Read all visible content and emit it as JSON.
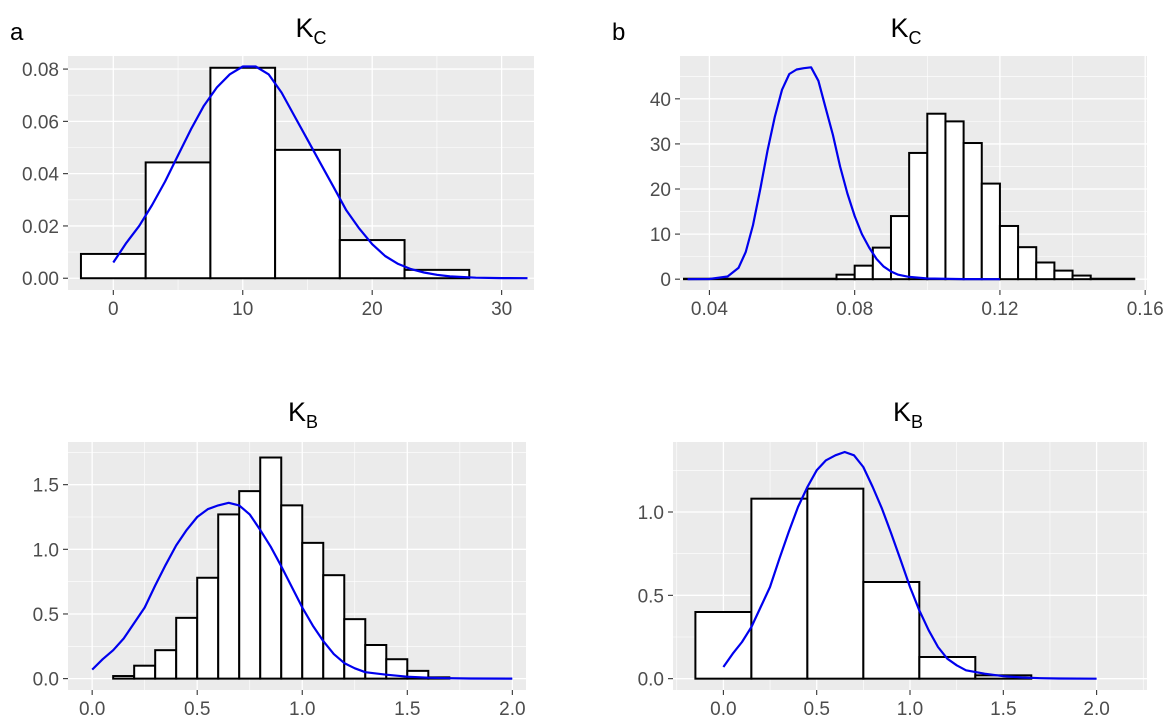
{
  "colors": {
    "panel_background": "#EBEBEB",
    "grid": "#FFFFFF",
    "bar_fill": "#FFFFFF",
    "bar_stroke": "#000000",
    "density_line": "#0000EE"
  },
  "chart_data": [
    {
      "id": "top-left",
      "panel_label": "a",
      "title": "K",
      "title_sub": "C",
      "type": "bar",
      "subtype": "histogram with density overlay",
      "grid": true,
      "xlim": [
        -3.5,
        32.5
      ],
      "ylim": [
        -0.0045,
        0.085
      ],
      "x_ticks": [
        0,
        10,
        20,
        30
      ],
      "x_tick_labels": [
        "0",
        "10",
        "20",
        "30"
      ],
      "y_ticks": [
        0,
        0.02,
        0.04,
        0.06,
        0.08
      ],
      "y_tick_labels": [
        "0.00",
        "0.02",
        "0.04",
        "0.06",
        "0.08"
      ],
      "bins": [
        {
          "x0": -2.5,
          "x1": 2.5,
          "value": 0.0093
        },
        {
          "x0": 2.5,
          "x1": 7.5,
          "value": 0.0443
        },
        {
          "x0": 7.5,
          "x1": 12.5,
          "value": 0.0805
        },
        {
          "x0": 12.5,
          "x1": 17.5,
          "value": 0.0491
        },
        {
          "x0": 17.5,
          "x1": 22.5,
          "value": 0.0146
        },
        {
          "x0": 22.5,
          "x1": 27.5,
          "value": 0.0032
        }
      ],
      "density": [
        [
          0,
          0.006
        ],
        [
          1,
          0.0135
        ],
        [
          2,
          0.02
        ],
        [
          3,
          0.028
        ],
        [
          4,
          0.037
        ],
        [
          5,
          0.047
        ],
        [
          6,
          0.057
        ],
        [
          7,
          0.066
        ],
        [
          8,
          0.073
        ],
        [
          9,
          0.078
        ],
        [
          10,
          0.081
        ],
        [
          11,
          0.081
        ],
        [
          12,
          0.078
        ],
        [
          13,
          0.071
        ],
        [
          14,
          0.062
        ],
        [
          15,
          0.053
        ],
        [
          16,
          0.044
        ],
        [
          17,
          0.035
        ],
        [
          18,
          0.026
        ],
        [
          19,
          0.019
        ],
        [
          20,
          0.013
        ],
        [
          21,
          0.0085
        ],
        [
          22,
          0.0055
        ],
        [
          23,
          0.0035
        ],
        [
          24,
          0.0022
        ],
        [
          25,
          0.0013
        ],
        [
          26,
          0.0007
        ],
        [
          28,
          0.0002
        ],
        [
          30,
          5e-05
        ],
        [
          32,
          0.0
        ]
      ]
    },
    {
      "id": "top-right",
      "panel_label": "b",
      "title": "K",
      "title_sub": "C",
      "type": "bar",
      "subtype": "histogram with density overlay",
      "grid": true,
      "xlim": [
        0.0319,
        0.1605
      ],
      "ylim": [
        -2.4,
        49.5
      ],
      "x_ticks": [
        0.04,
        0.08,
        0.12,
        0.16
      ],
      "x_tick_labels": [
        "0.04",
        "0.08",
        "0.12",
        "0.16"
      ],
      "y_ticks": [
        0,
        10,
        20,
        30,
        40
      ],
      "y_tick_labels": [
        "0",
        "10",
        "20",
        "30",
        "40"
      ],
      "bins": [
        {
          "x0": 0.033,
          "x1": 0.075,
          "value": 0.1
        },
        {
          "x0": 0.075,
          "x1": 0.08,
          "value": 1.0
        },
        {
          "x0": 0.08,
          "x1": 0.085,
          "value": 3.0
        },
        {
          "x0": 0.085,
          "x1": 0.09,
          "value": 7.0
        },
        {
          "x0": 0.09,
          "x1": 0.095,
          "value": 14.0
        },
        {
          "x0": 0.095,
          "x1": 0.1,
          "value": 28.0
        },
        {
          "x0": 0.1,
          "x1": 0.105,
          "value": 36.7
        },
        {
          "x0": 0.105,
          "x1": 0.11,
          "value": 35.0
        },
        {
          "x0": 0.11,
          "x1": 0.115,
          "value": 30.2
        },
        {
          "x0": 0.115,
          "x1": 0.12,
          "value": 21.2
        },
        {
          "x0": 0.12,
          "x1": 0.125,
          "value": 11.8
        },
        {
          "x0": 0.125,
          "x1": 0.13,
          "value": 7.1
        },
        {
          "x0": 0.13,
          "x1": 0.135,
          "value": 3.7
        },
        {
          "x0": 0.135,
          "x1": 0.14,
          "value": 1.9
        },
        {
          "x0": 0.14,
          "x1": 0.145,
          "value": 0.8
        },
        {
          "x0": 0.145,
          "x1": 0.157,
          "value": 0.1
        }
      ],
      "density": [
        [
          0.034,
          0
        ],
        [
          0.04,
          0.05
        ],
        [
          0.045,
          0.6
        ],
        [
          0.048,
          2.5
        ],
        [
          0.05,
          6.0
        ],
        [
          0.052,
          12.0
        ],
        [
          0.054,
          20.0
        ],
        [
          0.056,
          28.5
        ],
        [
          0.058,
          36.0
        ],
        [
          0.06,
          42.0
        ],
        [
          0.062,
          45.5
        ],
        [
          0.064,
          46.5
        ],
        [
          0.066,
          46.8
        ],
        [
          0.068,
          47.0
        ],
        [
          0.07,
          44.0
        ],
        [
          0.072,
          38.0
        ],
        [
          0.074,
          32.0
        ],
        [
          0.076,
          25.0
        ],
        [
          0.078,
          19.0
        ],
        [
          0.08,
          14.0
        ],
        [
          0.082,
          10.0
        ],
        [
          0.084,
          7.0
        ],
        [
          0.086,
          4.5
        ],
        [
          0.088,
          2.8
        ],
        [
          0.09,
          1.7
        ],
        [
          0.092,
          1.0
        ],
        [
          0.095,
          0.5
        ],
        [
          0.1,
          0.15
        ],
        [
          0.11,
          0.02
        ],
        [
          0.12,
          0
        ]
      ]
    },
    {
      "id": "bottom-left",
      "panel_label": "",
      "title": "K",
      "title_sub": "B",
      "type": "bar",
      "subtype": "histogram with density overlay",
      "grid": true,
      "xlim": [
        -0.115,
        2.065
      ],
      "ylim": [
        -0.088,
        1.83
      ],
      "x_ticks": [
        0.0,
        0.5,
        1.0,
        1.5,
        2.0
      ],
      "x_tick_labels": [
        "0.0",
        "0.5",
        "1.0",
        "1.5",
        "2.0"
      ],
      "y_ticks": [
        0,
        0.5,
        1.0,
        1.5
      ],
      "y_tick_labels": [
        "0.0",
        "0.5",
        "1.0",
        "1.5"
      ],
      "bins": [
        {
          "x0": 0.1,
          "x1": 0.2,
          "value": 0.02
        },
        {
          "x0": 0.2,
          "x1": 0.3,
          "value": 0.1
        },
        {
          "x0": 0.3,
          "x1": 0.4,
          "value": 0.22
        },
        {
          "x0": 0.4,
          "x1": 0.5,
          "value": 0.47
        },
        {
          "x0": 0.5,
          "x1": 0.6,
          "value": 0.78
        },
        {
          "x0": 0.6,
          "x1": 0.7,
          "value": 1.27
        },
        {
          "x0": 0.7,
          "x1": 0.8,
          "value": 1.45
        },
        {
          "x0": 0.8,
          "x1": 0.9,
          "value": 1.71
        },
        {
          "x0": 0.9,
          "x1": 1.0,
          "value": 1.34
        },
        {
          "x0": 1.0,
          "x1": 1.1,
          "value": 1.05
        },
        {
          "x0": 1.1,
          "x1": 1.2,
          "value": 0.8
        },
        {
          "x0": 1.2,
          "x1": 1.3,
          "value": 0.46
        },
        {
          "x0": 1.3,
          "x1": 1.4,
          "value": 0.26
        },
        {
          "x0": 1.4,
          "x1": 1.5,
          "value": 0.15
        },
        {
          "x0": 1.5,
          "x1": 1.6,
          "value": 0.06
        },
        {
          "x0": 1.6,
          "x1": 1.7,
          "value": 0.01
        }
      ],
      "density": [
        [
          0.0,
          0.07
        ],
        [
          0.05,
          0.15
        ],
        [
          0.1,
          0.22
        ],
        [
          0.15,
          0.31
        ],
        [
          0.2,
          0.43
        ],
        [
          0.25,
          0.55
        ],
        [
          0.3,
          0.72
        ],
        [
          0.35,
          0.88
        ],
        [
          0.4,
          1.03
        ],
        [
          0.45,
          1.15
        ],
        [
          0.5,
          1.25
        ],
        [
          0.55,
          1.31
        ],
        [
          0.6,
          1.34
        ],
        [
          0.65,
          1.36
        ],
        [
          0.7,
          1.34
        ],
        [
          0.75,
          1.27
        ],
        [
          0.8,
          1.15
        ],
        [
          0.85,
          1.02
        ],
        [
          0.9,
          0.87
        ],
        [
          0.95,
          0.71
        ],
        [
          1.0,
          0.55
        ],
        [
          1.05,
          0.41
        ],
        [
          1.1,
          0.29
        ],
        [
          1.15,
          0.19
        ],
        [
          1.2,
          0.12
        ],
        [
          1.25,
          0.08
        ],
        [
          1.3,
          0.05
        ],
        [
          1.4,
          0.03
        ],
        [
          1.5,
          0.015
        ],
        [
          1.6,
          0.007
        ],
        [
          1.7,
          0.003
        ],
        [
          1.8,
          0.001
        ],
        [
          2.0,
          0
        ]
      ]
    },
    {
      "id": "bottom-right",
      "panel_label": "",
      "title": "K",
      "title_sub": "B",
      "type": "bar",
      "subtype": "histogram with density overlay",
      "grid": true,
      "xlim": [
        -0.27,
        2.27
      ],
      "ylim": [
        -0.068,
        1.42
      ],
      "x_ticks": [
        0.0,
        0.5,
        1.0,
        1.5,
        2.0
      ],
      "x_tick_labels": [
        "0.0",
        "0.5",
        "1.0",
        "1.5",
        "2.0"
      ],
      "y_ticks": [
        0,
        0.5,
        1.0
      ],
      "y_tick_labels": [
        "0.0",
        "0.5",
        "1.0"
      ],
      "bins": [
        {
          "x0": -0.15,
          "x1": 0.15,
          "value": 0.4
        },
        {
          "x0": 0.15,
          "x1": 0.45,
          "value": 1.08
        },
        {
          "x0": 0.45,
          "x1": 0.75,
          "value": 1.14
        },
        {
          "x0": 0.75,
          "x1": 1.05,
          "value": 0.58
        },
        {
          "x0": 1.05,
          "x1": 1.35,
          "value": 0.13
        },
        {
          "x0": 1.35,
          "x1": 1.65,
          "value": 0.02
        }
      ],
      "density": [
        [
          0.0,
          0.07
        ],
        [
          0.05,
          0.15
        ],
        [
          0.1,
          0.22
        ],
        [
          0.15,
          0.31
        ],
        [
          0.2,
          0.43
        ],
        [
          0.25,
          0.55
        ],
        [
          0.3,
          0.72
        ],
        [
          0.35,
          0.88
        ],
        [
          0.4,
          1.03
        ],
        [
          0.45,
          1.15
        ],
        [
          0.5,
          1.25
        ],
        [
          0.55,
          1.31
        ],
        [
          0.6,
          1.34
        ],
        [
          0.65,
          1.36
        ],
        [
          0.7,
          1.34
        ],
        [
          0.75,
          1.27
        ],
        [
          0.8,
          1.15
        ],
        [
          0.85,
          1.02
        ],
        [
          0.9,
          0.87
        ],
        [
          0.95,
          0.71
        ],
        [
          1.0,
          0.55
        ],
        [
          1.05,
          0.41
        ],
        [
          1.1,
          0.29
        ],
        [
          1.15,
          0.19
        ],
        [
          1.2,
          0.12
        ],
        [
          1.25,
          0.08
        ],
        [
          1.3,
          0.05
        ],
        [
          1.4,
          0.03
        ],
        [
          1.5,
          0.015
        ],
        [
          1.6,
          0.007
        ],
        [
          1.7,
          0.003
        ],
        [
          1.8,
          0.001
        ],
        [
          2.0,
          0
        ]
      ]
    }
  ]
}
